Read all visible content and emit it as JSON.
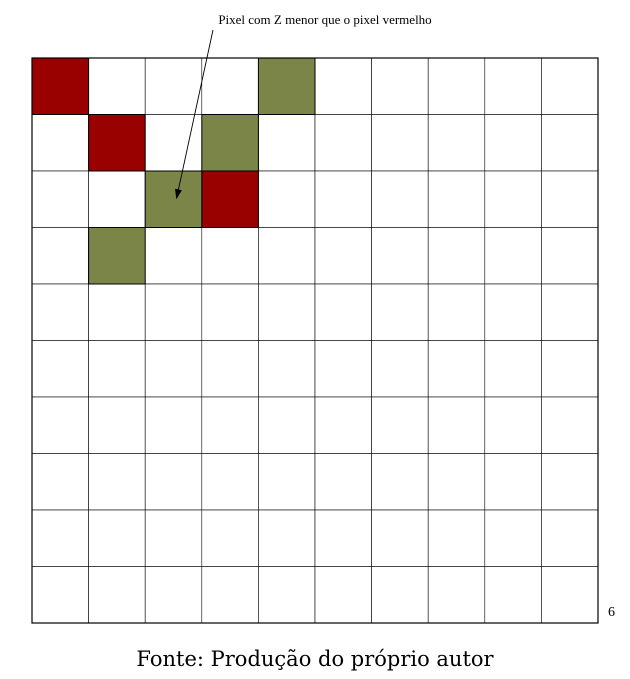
{
  "annotation": "Pixel com Z menor que o pixel vermelho",
  "page_number": "6",
  "caption": "Fonte: Produção do próprio autor",
  "grid": {
    "columns": 10,
    "rows": 10
  },
  "colors": {
    "red_pixel": "#990000",
    "green_pixel": "#7b8548",
    "grid_line": "#000000",
    "background": "#ffffff"
  },
  "red_pixels": [
    {
      "col": 0,
      "row": 0
    },
    {
      "col": 1,
      "row": 1
    },
    {
      "col": 3,
      "row": 2
    }
  ],
  "green_pixels": [
    {
      "col": 4,
      "row": 0
    },
    {
      "col": 3,
      "row": 1
    },
    {
      "col": 2,
      "row": 2
    },
    {
      "col": 1,
      "row": 3
    }
  ],
  "arrow_target": {
    "col": 2,
    "row": 2
  }
}
